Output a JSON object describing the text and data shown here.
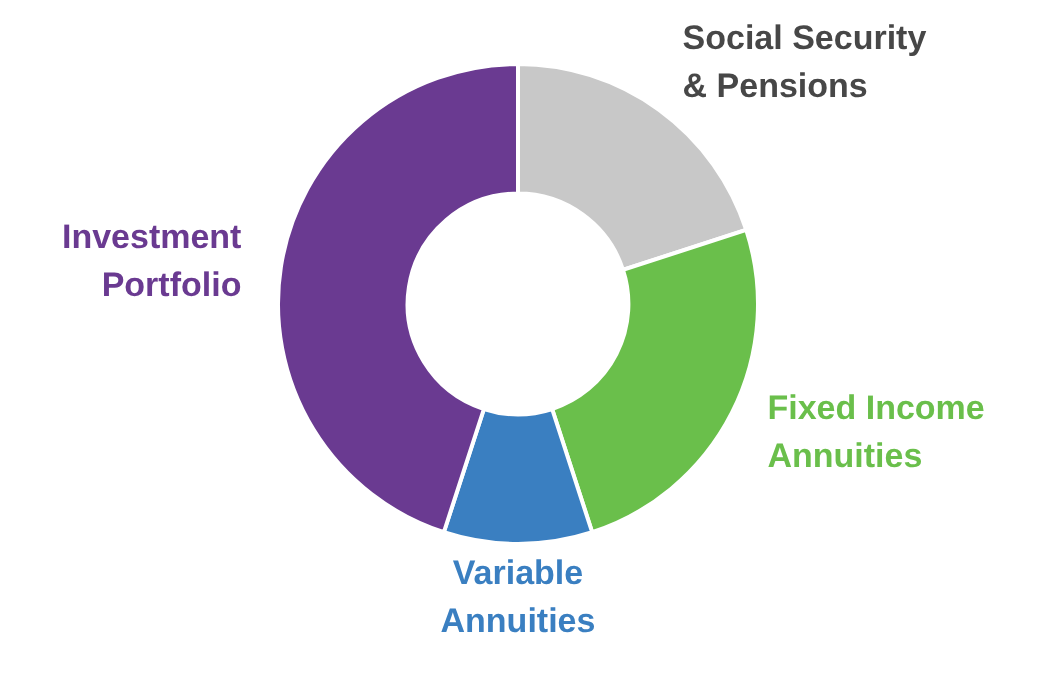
{
  "chart_data": {
    "type": "donut",
    "categories": [
      "Social Security & Pensions",
      "Fixed Income Annuities",
      "Variable Annuities",
      "Investment Portfolio"
    ],
    "values": [
      20,
      25,
      10,
      45
    ],
    "colors": [
      "#c8c8c8",
      "#6abf4b",
      "#3a7fc1",
      "#6a3a91"
    ]
  }
}
